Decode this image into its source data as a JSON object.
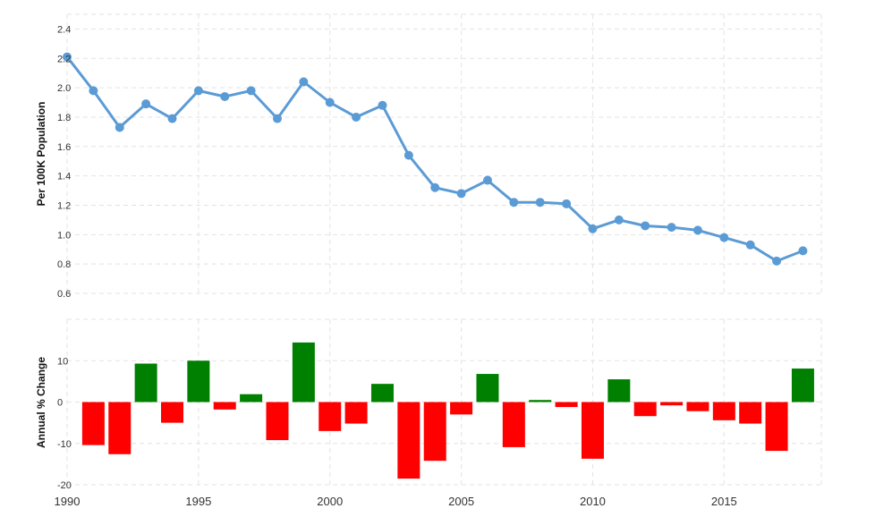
{
  "chart_data": [
    {
      "type": "line",
      "ylabel": "Per 100K Population",
      "ylim": [
        0.6,
        2.5
      ],
      "yticks": [
        "0.6",
        "0.8",
        "1.0",
        "1.2",
        "1.4",
        "1.6",
        "1.8",
        "2.0",
        "2.2",
        "2.4"
      ],
      "grid": true,
      "series": [
        {
          "color": "#5b9bd5",
          "x": [
            1990,
            1991,
            1992,
            1993,
            1994,
            1995,
            1996,
            1997,
            1998,
            1999,
            2000,
            2001,
            2002,
            2003,
            2004,
            2005,
            2006,
            2007,
            2008,
            2009,
            2010,
            2011,
            2012,
            2013,
            2014,
            2015,
            2016,
            2017,
            2018
          ],
          "values": [
            2.21,
            1.98,
            1.73,
            1.89,
            1.79,
            1.98,
            1.94,
            1.98,
            1.79,
            2.04,
            1.9,
            1.8,
            1.88,
            1.54,
            1.32,
            1.28,
            1.37,
            1.22,
            1.22,
            1.21,
            1.04,
            1.1,
            1.06,
            1.05,
            1.03,
            0.98,
            0.93,
            0.82,
            0.89
          ]
        }
      ]
    },
    {
      "type": "bar",
      "ylabel": "Annual % Change",
      "ylim": [
        -20,
        20
      ],
      "yticks": [
        "-20",
        "-10",
        "0",
        "10"
      ],
      "grid": true,
      "colors": {
        "positive": "#008000",
        "negative": "#ff0000"
      },
      "x": [
        1991,
        1992,
        1993,
        1994,
        1995,
        1996,
        1997,
        1998,
        1999,
        2000,
        2001,
        2002,
        2003,
        2004,
        2005,
        2006,
        2007,
        2008,
        2009,
        2010,
        2011,
        2012,
        2013,
        2014,
        2015,
        2016,
        2017,
        2018
      ],
      "values": [
        -10.4,
        -12.6,
        9.3,
        -5.0,
        10.0,
        -1.8,
        1.9,
        -9.2,
        14.4,
        -7.0,
        -5.2,
        4.4,
        -18.5,
        -14.2,
        -3.0,
        6.8,
        -10.9,
        0.5,
        -1.2,
        -13.7,
        5.5,
        -3.4,
        -0.8,
        -2.2,
        -4.4,
        -5.2,
        -11.8,
        8.1
      ]
    }
  ],
  "x_axis": {
    "xlim": [
      1990,
      2018.7
    ],
    "ticks": [
      "1990",
      "1995",
      "2000",
      "2005",
      "2010",
      "2015"
    ]
  }
}
